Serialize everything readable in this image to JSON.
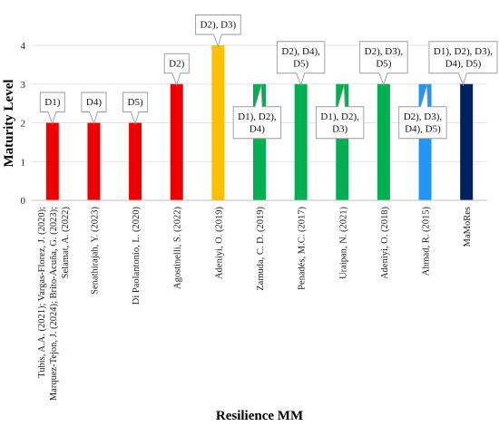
{
  "chart_data": {
    "type": "bar",
    "title": "",
    "xlabel": "Resilience MM",
    "ylabel": "Maturity Level",
    "ylim": [
      0,
      4
    ],
    "yticks": [
      "0",
      "1",
      "2",
      "3",
      "4"
    ],
    "grid": true,
    "categories": [
      [
        "Tubis, A.A. (2021); Vargas-Florez, J. (2020);",
        "Marquez-Tejon, J. (2024); Brito-Acuña, G. (2023);",
        "Selamat, A. (2022)"
      ],
      [
        "Senathirajah, Y. (2023)"
      ],
      [
        "Di Paolantonio, L. (2020)"
      ],
      [
        "Agostinelli, S. (2022)"
      ],
      [
        "Adeniyi, O. (2019)"
      ],
      [
        "Zamuda, C. D. (2019)"
      ],
      [
        "Penadés, M.C. (2017)"
      ],
      [
        "Uraipan, N. (2021)"
      ],
      [
        "Adeniyi, O. (2018)"
      ],
      [
        "Ahmad, R. (2015)"
      ],
      [
        "MaMoRes"
      ]
    ],
    "values": [
      2,
      2,
      2,
      3,
      4,
      3,
      3,
      3,
      3,
      3,
      3
    ],
    "bar_colors": [
      "#ee0000",
      "#ee0000",
      "#ee0000",
      "#ee0000",
      "#ffc000",
      "#00b050",
      "#00b050",
      "#00b050",
      "#00b050",
      "#2196f3",
      "#002060"
    ],
    "annotations": [
      {
        "bar": 0,
        "lines": [
          "D1)"
        ],
        "place": "above"
      },
      {
        "bar": 1,
        "lines": [
          "D4)"
        ],
        "place": "above"
      },
      {
        "bar": 2,
        "lines": [
          "D5)"
        ],
        "place": "above"
      },
      {
        "bar": 3,
        "lines": [
          "D2)"
        ],
        "place": "above"
      },
      {
        "bar": 4,
        "lines": [
          "D2), D3)"
        ],
        "place": "above"
      },
      {
        "bar": 5,
        "lines": [
          "D1), D2),",
          "D4)"
        ],
        "place": "below"
      },
      {
        "bar": 6,
        "lines": [
          "D2), D4),",
          "D5)"
        ],
        "place": "above"
      },
      {
        "bar": 7,
        "lines": [
          "D1), D2),",
          "D3)"
        ],
        "place": "below"
      },
      {
        "bar": 8,
        "lines": [
          "D2), D3),",
          "D5)"
        ],
        "place": "above"
      },
      {
        "bar": 9,
        "lines": [
          "D2), D3),",
          "D4), D5)"
        ],
        "place": "below"
      },
      {
        "bar": 10,
        "lines": [
          "D1), D2), D3),",
          "D4), D5)"
        ],
        "place": "above"
      }
    ]
  }
}
